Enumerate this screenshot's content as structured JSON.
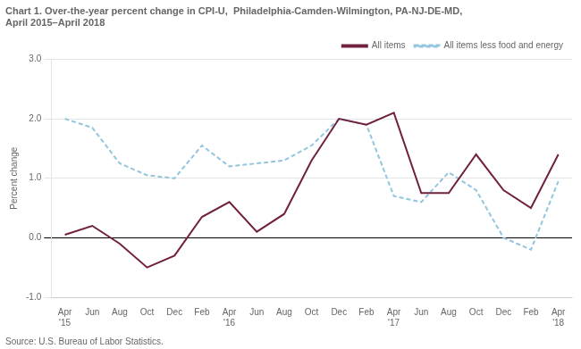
{
  "chart_data": {
    "type": "line",
    "title": [
      "Chart 1. Over-the-year percent change in CPI-U,  Philadelphia-Camden-Wilmington, PA-NJ-DE-MD,",
      "April 2015–April 2018"
    ],
    "ylabel": "Percent change",
    "annotations": [
      "Source: U.S. Bureau of Labor Statistics."
    ],
    "categories": [
      "Apr\n'15",
      "Jun",
      "Aug",
      "Oct",
      "Dec",
      "Feb",
      "Apr\n'16",
      "Jun",
      "Aug",
      "Oct",
      "Dec",
      "Feb",
      "Apr\n'17",
      "Jun",
      "Aug",
      "Oct",
      "Dec",
      "Feb",
      "Apr\n'18"
    ],
    "series": [
      {
        "name": "All items",
        "color": "#722040",
        "line_style": "solid",
        "values": [
          0.05,
          0.2,
          -0.1,
          -0.5,
          -0.3,
          0.35,
          0.6,
          0.1,
          0.4,
          1.3,
          2.0,
          1.9,
          2.1,
          0.75,
          0.75,
          1.4,
          0.8,
          0.5,
          1.4
        ]
      },
      {
        "name": "All items less food and energy",
        "color": "#92c5de",
        "line_style": "dashed",
        "values": [
          2.0,
          1.85,
          1.25,
          1.05,
          1.0,
          1.55,
          1.2,
          1.25,
          1.3,
          1.55,
          2.0,
          1.9,
          0.7,
          0.6,
          1.1,
          0.8,
          0.0,
          -0.2,
          0.95
        ]
      }
    ],
    "ylim": [
      -1.0,
      3.0
    ],
    "yticks": [
      {
        "value": -1.0,
        "label": "-1.0"
      },
      {
        "value": 0.0,
        "label": "0.0"
      },
      {
        "value": 1.0,
        "label": "1.0"
      },
      {
        "value": 2.0,
        "label": "2.0"
      },
      {
        "value": 3.0,
        "label": "3.0"
      }
    ],
    "grid": true,
    "legend": "top"
  }
}
